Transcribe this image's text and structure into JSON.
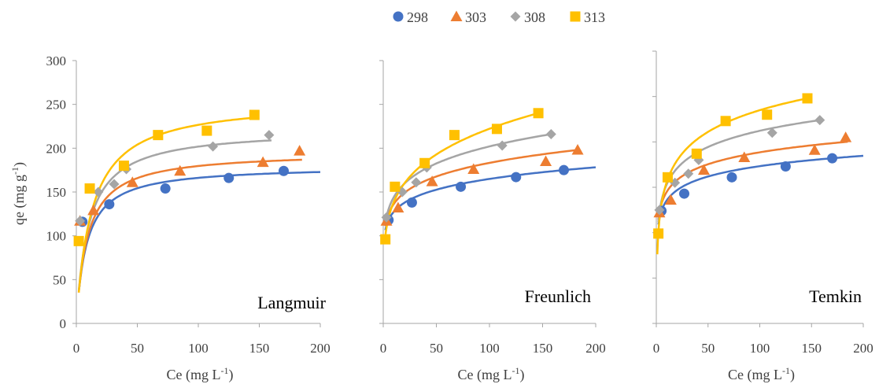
{
  "legend": {
    "placement": "top-center",
    "entries": [
      {
        "name": "298",
        "color": "#4472C4",
        "marker": "circle"
      },
      {
        "name": "303",
        "color": "#ED7D31",
        "marker": "triangle"
      },
      {
        "name": "308",
        "color": "#A5A5A5",
        "marker": "diamond"
      },
      {
        "name": "313",
        "color": "#FFC000",
        "marker": "square"
      }
    ]
  },
  "chart_data": [
    {
      "type": "scatter",
      "title": "Langmuir",
      "xlabel": "Ce (mg L-1)",
      "xlabel_main": "Ce (mg L",
      "xlabel_sup": "-1",
      "xlabel_end": ")",
      "ylabel": "qe (mg g-1)",
      "ylabel_main": "qe (mg g",
      "ylabel_sup": "-1",
      "ylabel_end": ")",
      "xlim": [
        0,
        200
      ],
      "ylim": [
        0,
        300
      ],
      "xticks": [
        0,
        50,
        100,
        150,
        200
      ],
      "xtick_labels": [
        "0",
        "50",
        "100",
        "150",
        "200"
      ],
      "yticks": [
        0,
        50,
        100,
        150,
        200,
        250,
        300
      ],
      "ytick_labels": [
        "0",
        "50",
        "100",
        "150",
        "200",
        "250",
        "300"
      ],
      "show_y_labels": true,
      "grid": false,
      "series": [
        {
          "name": "298",
          "color": "#4472C4",
          "marker": "circle",
          "x": [
            5,
            27,
            73,
            125,
            170
          ],
          "y": [
            116,
            136,
            154,
            166,
            174
          ],
          "fit": {
            "model": "langmuir",
            "qm": 180,
            "b": 0.12,
            "x_start": 2.5,
            "x_end": 200
          }
        },
        {
          "name": "303",
          "color": "#ED7D31",
          "marker": "triangle",
          "x": [
            3,
            14,
            46,
            85,
            153,
            183
          ],
          "y": [
            117,
            129,
            161,
            174,
            184,
            197
          ],
          "fit": {
            "model": "langmuir",
            "qm": 196,
            "b": 0.11,
            "x_start": 2,
            "x_end": 185
          }
        },
        {
          "name": "308",
          "color": "#A5A5A5",
          "marker": "diamond",
          "x": [
            3,
            18,
            31,
            41,
            112,
            158
          ],
          "y": [
            117,
            150,
            159,
            176,
            202,
            215
          ],
          "fit": {
            "model": "langmuir",
            "qm": 222,
            "b": 0.1,
            "x_start": 2,
            "x_end": 160
          }
        },
        {
          "name": "313",
          "color": "#FFC000",
          "marker": "square",
          "x": [
            2,
            11,
            39,
            67,
            107,
            146
          ],
          "y": [
            94,
            154,
            180,
            215,
            220,
            238
          ],
          "fit": {
            "model": "langmuir",
            "qm": 255,
            "b": 0.08,
            "x_start": 2,
            "x_end": 147
          }
        }
      ]
    },
    {
      "type": "scatter",
      "title": "Freunlich",
      "xlabel": "Ce (mg L-1)",
      "xlabel_main": "Ce (mg L",
      "xlabel_sup": "-1",
      "xlabel_end": ")",
      "xlim": [
        0,
        200
      ],
      "ylim": [
        0,
        300
      ],
      "xticks": [
        0,
        50,
        100,
        150,
        200
      ],
      "xtick_labels": [
        "0",
        "50",
        "100",
        "150",
        "200"
      ],
      "yticks": [
        0,
        50,
        100,
        150,
        200,
        250,
        300
      ],
      "show_y_labels": false,
      "grid": false,
      "series": [
        {
          "name": "298",
          "color": "#4472C4",
          "marker": "circle",
          "x": [
            5,
            27,
            73,
            125,
            170
          ],
          "y": [
            118,
            138,
            156,
            167,
            175
          ],
          "fit": {
            "model": "freundlich",
            "x_start": 2,
            "x_end": 200,
            "x1": 5,
            "y1": 118,
            "x2": 170,
            "y2": 175
          }
        },
        {
          "name": "303",
          "color": "#ED7D31",
          "marker": "triangle",
          "x": [
            3,
            14,
            46,
            85,
            153,
            183
          ],
          "y": [
            117,
            132,
            162,
            176,
            185,
            198
          ],
          "fit": {
            "model": "freundlich",
            "x_start": 2,
            "x_end": 185,
            "x1": 3,
            "y1": 117,
            "x2": 183,
            "y2": 198
          }
        },
        {
          "name": "308",
          "color": "#A5A5A5",
          "marker": "diamond",
          "x": [
            3,
            18,
            31,
            41,
            112,
            158
          ],
          "y": [
            121,
            150,
            161,
            178,
            203,
            216
          ],
          "fit": {
            "model": "freundlich",
            "x_start": 2,
            "x_end": 160,
            "x1": 3,
            "y1": 121,
            "x2": 158,
            "y2": 216
          }
        },
        {
          "name": "313",
          "color": "#FFC000",
          "marker": "square",
          "x": [
            2,
            11,
            39,
            67,
            107,
            146
          ],
          "y": [
            96,
            156,
            183,
            215,
            222,
            240
          ],
          "fit": {
            "model": "freundlich",
            "x_start": 2,
            "x_end": 147,
            "x1": 2,
            "y1": 100,
            "x2": 146,
            "y2": 240
          }
        }
      ]
    },
    {
      "type": "scatter",
      "title": "Temkin",
      "xlabel": "Ce (mg L-1)",
      "xlabel_main": "Ce (mg L",
      "xlabel_sup": "-1",
      "xlabel_end": ")",
      "xlim": [
        0,
        200
      ],
      "ylim": [
        0,
        300
      ],
      "xticks": [
        0,
        50,
        100,
        150,
        200
      ],
      "xtick_labels": [
        "0",
        "50",
        "100",
        "150",
        "200"
      ],
      "yticks": [
        0,
        50,
        100,
        150,
        200,
        250,
        300
      ],
      "show_y_labels": false,
      "grid": false,
      "series": [
        {
          "name": "298",
          "color": "#4472C4",
          "marker": "circle",
          "x": [
            5,
            27,
            73,
            125,
            170
          ],
          "y": [
            124,
            143,
            161,
            173,
            182
          ],
          "fit": {
            "model": "temkin",
            "x_start": 2,
            "x_end": 200,
            "x1": 5,
            "y1": 124,
            "x2": 170,
            "y2": 182
          }
        },
        {
          "name": "303",
          "color": "#ED7D31",
          "marker": "triangle",
          "x": [
            3,
            14,
            46,
            85,
            153,
            183
          ],
          "y": [
            122,
            136,
            169,
            183,
            191,
            205
          ],
          "fit": {
            "model": "temkin",
            "x_start": 2,
            "x_end": 185,
            "x1": 3,
            "y1": 122,
            "x2": 183,
            "y2": 200
          }
        },
        {
          "name": "308",
          "color": "#A5A5A5",
          "marker": "diamond",
          "x": [
            3,
            18,
            31,
            41,
            112,
            158
          ],
          "y": [
            125,
            155,
            165,
            180,
            210,
            224
          ],
          "fit": {
            "model": "temkin",
            "x_start": 2,
            "x_end": 160,
            "x1": 3,
            "y1": 122,
            "x2": 158,
            "y2": 224
          }
        },
        {
          "name": "313",
          "color": "#FFC000",
          "marker": "square",
          "x": [
            2,
            11,
            39,
            67,
            107,
            146
          ],
          "y": [
            99,
            161,
            187,
            223,
            230,
            248
          ],
          "fit": {
            "model": "temkin",
            "x_start": 1,
            "x_end": 147,
            "x1": 2,
            "y1": 100,
            "x2": 146,
            "y2": 248
          }
        }
      ]
    }
  ]
}
